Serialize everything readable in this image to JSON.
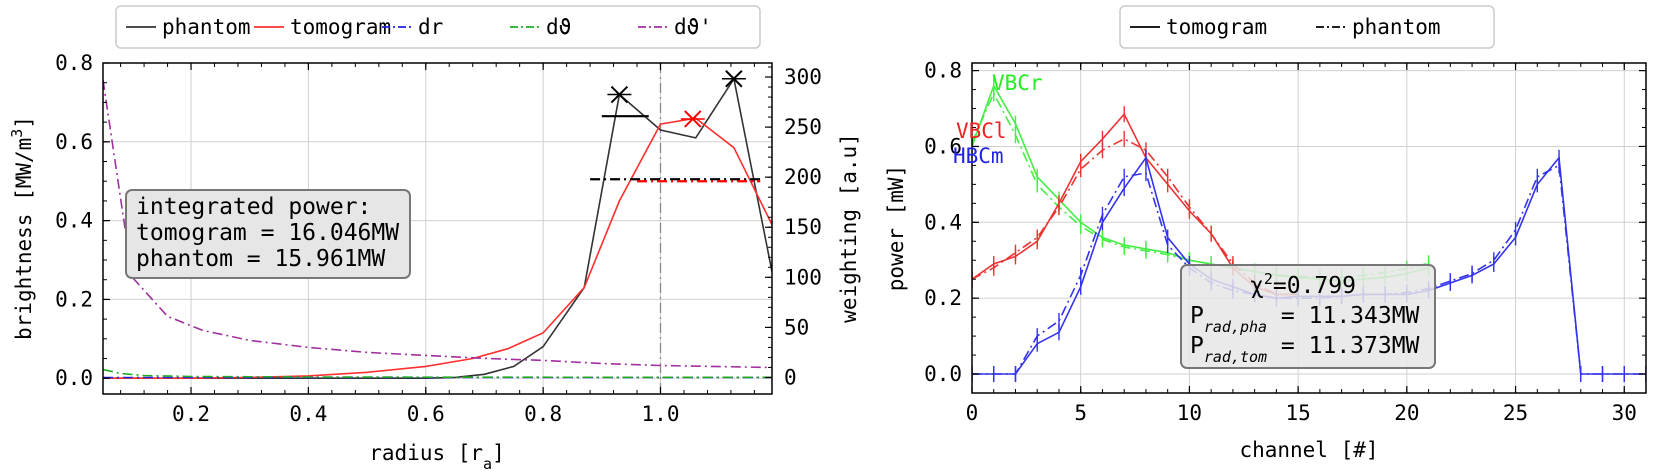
{
  "chart_data": [
    {
      "type": "line",
      "xlabel": "radius [r",
      "xlabel_sub": "a",
      "xlabel_end": "]",
      "ylabel": "brightness [MW/m",
      "ylabel_sup": "3",
      "ylabel_end": "]",
      "y2label": "weighting [a.u]",
      "xlim": [
        0.05,
        1.19
      ],
      "ylim": [
        -0.04,
        0.8
      ],
      "y2lim": [
        -16.5,
        314
      ],
      "xticks": [
        "0.2",
        "0.4",
        "0.6",
        "0.8",
        "1.0"
      ],
      "xtick_values": [
        0.2,
        0.4,
        0.6,
        0.8,
        1.0
      ],
      "yticks": [
        "0.0",
        "0.2",
        "0.4",
        "0.6",
        "0.8"
      ],
      "ytick_values": [
        0.0,
        0.2,
        0.4,
        0.6,
        0.8
      ],
      "y2ticks": [
        "0",
        "50",
        "100",
        "150",
        "200",
        "250",
        "300"
      ],
      "y2tick_values": [
        0,
        50,
        100,
        150,
        200,
        250,
        300
      ],
      "vline_x": 1.0,
      "legend": {
        "placement": "top-outside",
        "entries": [
          {
            "label": "phantom",
            "color": "#333333",
            "dash": "solid"
          },
          {
            "label": "tomogram",
            "color": "#ff3030",
            "dash": "solid"
          },
          {
            "label": "dr",
            "color": "#2222dd",
            "dash": "dashdot"
          },
          {
            "label": "dϑ",
            "color": "#22aa22",
            "dash": "dashdot"
          },
          {
            "label": "dϑ'",
            "color": "#a030a0",
            "dash": "dashdot"
          }
        ]
      },
      "series": [
        {
          "name": "phantom",
          "color": "#333333",
          "dash": "solid",
          "axis": "left",
          "x": [
            0.05,
            0.1,
            0.2,
            0.3,
            0.4,
            0.5,
            0.6,
            0.65,
            0.7,
            0.75,
            0.8,
            0.87,
            0.93,
            1.0,
            1.06,
            1.125,
            1.19
          ],
          "y": [
            0.0,
            0.0,
            0.0,
            0.0,
            0.0,
            0.0,
            0.0,
            0.002,
            0.01,
            0.03,
            0.08,
            0.23,
            0.72,
            0.63,
            0.61,
            0.76,
            0.27
          ]
        },
        {
          "name": "tomogram",
          "color": "#ff3030",
          "dash": "solid",
          "axis": "left",
          "x": [
            0.05,
            0.1,
            0.2,
            0.3,
            0.4,
            0.5,
            0.6,
            0.68,
            0.74,
            0.8,
            0.87,
            0.93,
            1.0,
            1.06,
            1.125,
            1.19
          ],
          "y": [
            0.0,
            0.0,
            0.0,
            0.002,
            0.006,
            0.015,
            0.03,
            0.05,
            0.075,
            0.115,
            0.23,
            0.45,
            0.645,
            0.66,
            0.585,
            0.39
          ]
        },
        {
          "name": "dr",
          "color": "#2222dd",
          "dash": "dashdot",
          "axis": "right",
          "x": [
            0.05,
            1.19
          ],
          "y": [
            0,
            0
          ]
        },
        {
          "name": "dϑ",
          "color": "#22aa22",
          "dash": "dashdot",
          "axis": "right",
          "x": [
            0.05,
            0.08,
            0.12,
            0.2,
            0.4,
            0.7,
            1.0,
            1.19
          ],
          "y": [
            8,
            4,
            2,
            1,
            0.5,
            0.3,
            0.2,
            0.2
          ]
        },
        {
          "name": "dϑ'",
          "color": "#a030a0",
          "dash": "dashdot",
          "axis": "right",
          "x": [
            0.05,
            0.1,
            0.16,
            0.22,
            0.3,
            0.4,
            0.5,
            0.6,
            0.7,
            0.8,
            0.9,
            1.0,
            1.19
          ],
          "y": [
            297,
            100,
            61,
            47,
            37,
            30,
            25,
            22,
            19,
            17,
            14,
            12,
            10
          ]
        }
      ],
      "markers": [
        {
          "x": 0.93,
          "y": 0.72,
          "color": "#000000"
        },
        {
          "x": 1.125,
          "y": 0.76,
          "color": "#000000"
        },
        {
          "x": 1.055,
          "y": 0.658,
          "color": "#ff0000"
        }
      ],
      "error_hlines": [
        {
          "x1": 0.9,
          "x2": 0.98,
          "y": 0.665,
          "color": "#000000",
          "dash": "solid"
        },
        {
          "x1": 0.88,
          "x2": 1.17,
          "y": 0.505,
          "color": "#000000",
          "dash": "dashdot"
        },
        {
          "x1": 0.96,
          "x2": 1.17,
          "y": 0.5,
          "color": "#ff0000",
          "dash": "dashdot"
        }
      ],
      "annotation": {
        "lines": [
          "integrated power:",
          "tomogram = 16.046MW",
          "phantom = 15.961MW"
        ]
      }
    },
    {
      "type": "line",
      "xlabel": "channel [#]",
      "ylabel": "power [mW]",
      "xlim": [
        0,
        31
      ],
      "ylim": [
        -0.05,
        0.82
      ],
      "xticks": [
        "0",
        "5",
        "10",
        "15",
        "20",
        "25",
        "30"
      ],
      "xtick_values": [
        0,
        5,
        10,
        15,
        20,
        25,
        30
      ],
      "yticks": [
        "0.0",
        "0.2",
        "0.4",
        "0.6",
        "0.8"
      ],
      "ytick_values": [
        0.0,
        0.2,
        0.4,
        0.6,
        0.8
      ],
      "legend": {
        "placement": "top-outside",
        "entries": [
          {
            "label": "tomogram",
            "color": "#000000",
            "dash": "solid"
          },
          {
            "label": "phantom",
            "color": "#000000",
            "dash": "dashdot"
          }
        ]
      },
      "cameras": [
        {
          "label": "VBCr",
          "color": "#22ee22"
        },
        {
          "label": "VBCl",
          "color": "#ee2222"
        },
        {
          "label": "HBCm",
          "color": "#2222ee"
        }
      ],
      "series": [
        {
          "name": "VBCr tomogram",
          "color": "#44ee44",
          "dash": "solid",
          "x": [
            0,
            1,
            2,
            3,
            4,
            5,
            6,
            7,
            8,
            9,
            10,
            11,
            12,
            13,
            14,
            15,
            16,
            17,
            18,
            19,
            20,
            21
          ],
          "y": [
            0.6,
            0.76,
            0.66,
            0.52,
            0.46,
            0.4,
            0.36,
            0.34,
            0.33,
            0.32,
            0.3,
            0.29,
            0.28,
            0.27,
            0.26,
            0.255,
            0.25,
            0.245,
            0.25,
            0.255,
            0.265,
            0.28
          ]
        },
        {
          "name": "VBCr phantom",
          "color": "#44ee44",
          "dash": "dashdot",
          "x": [
            0,
            1,
            2,
            3,
            4,
            5,
            6,
            7,
            8,
            9,
            10,
            11,
            12,
            13,
            14,
            15,
            16,
            17,
            18,
            19,
            20,
            21
          ],
          "y": [
            0.61,
            0.74,
            0.63,
            0.5,
            0.44,
            0.39,
            0.355,
            0.335,
            0.325,
            0.315,
            0.3,
            0.29,
            0.28,
            0.27,
            0.262,
            0.258,
            0.255,
            0.255,
            0.26,
            0.268,
            0.278,
            0.292
          ]
        },
        {
          "name": "VBCl tomogram",
          "color": "#ee3333",
          "dash": "solid",
          "x": [
            0,
            1,
            2,
            3,
            4,
            5,
            6,
            7,
            8,
            9,
            10,
            11,
            12,
            13,
            14,
            15
          ],
          "y": [
            0.25,
            0.29,
            0.31,
            0.35,
            0.45,
            0.56,
            0.62,
            0.685,
            0.57,
            0.5,
            0.43,
            0.37,
            0.28,
            0.23,
            0.21,
            0.21
          ]
        },
        {
          "name": "VBCl phantom",
          "color": "#ee3333",
          "dash": "dashdot",
          "x": [
            0,
            1,
            2,
            3,
            4,
            5,
            6,
            7,
            8,
            9,
            10,
            11,
            12,
            13,
            14,
            15
          ],
          "y": [
            0.25,
            0.28,
            0.32,
            0.36,
            0.44,
            0.54,
            0.59,
            0.62,
            0.59,
            0.52,
            0.44,
            0.37,
            0.29,
            0.24,
            0.21,
            0.21
          ]
        },
        {
          "name": "HBCm tomogram",
          "color": "#3333ee",
          "dash": "solid",
          "x": [
            0,
            1,
            2,
            3,
            4,
            5,
            6,
            7,
            8,
            9,
            10,
            11,
            12,
            13,
            14,
            15,
            16,
            17,
            18,
            19,
            20,
            21,
            22,
            23,
            24,
            25,
            26,
            27,
            28,
            29,
            30,
            31
          ],
          "y": [
            0,
            0,
            0,
            0.08,
            0.11,
            0.23,
            0.4,
            0.49,
            0.57,
            0.36,
            0.29,
            0.25,
            0.23,
            0.21,
            0.2,
            0.205,
            0.205,
            0.205,
            0.21,
            0.21,
            0.21,
            0.22,
            0.24,
            0.26,
            0.29,
            0.36,
            0.5,
            0.57,
            0,
            0,
            0,
            0
          ]
        },
        {
          "name": "HBCm phantom",
          "color": "#3333ee",
          "dash": "dashdot",
          "x": [
            0,
            1,
            2,
            3,
            4,
            5,
            6,
            7,
            8,
            9,
            10,
            11,
            12,
            13,
            14,
            15,
            16,
            17,
            18,
            19,
            20,
            21,
            22,
            23,
            24,
            25,
            26,
            27,
            28,
            29,
            30,
            31
          ],
          "y": [
            0,
            0,
            0,
            0.1,
            0.14,
            0.26,
            0.42,
            0.52,
            0.53,
            0.34,
            0.28,
            0.24,
            0.22,
            0.21,
            0.2,
            0.2,
            0.2,
            0.205,
            0.21,
            0.21,
            0.215,
            0.225,
            0.245,
            0.265,
            0.3,
            0.38,
            0.52,
            0.55,
            0,
            0,
            0,
            0
          ]
        }
      ],
      "annotation": {
        "chi_label": "χ",
        "chi_sup": "2",
        "chi_value": "=0.799",
        "pha_label": "P",
        "pha_sub": "rad,pha",
        "pha_value": " = 11.343MW",
        "tom_label": "P",
        "tom_sub": "rad,tom",
        "tom_value": " = 11.373MW"
      }
    }
  ]
}
